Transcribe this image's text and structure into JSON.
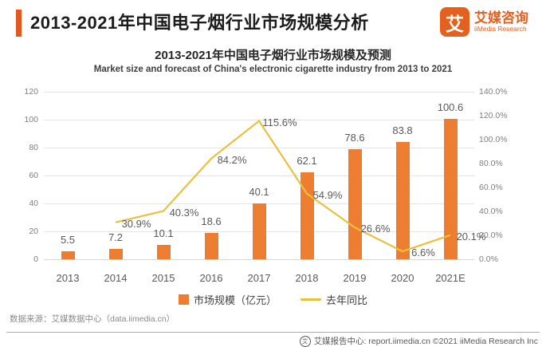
{
  "header": {
    "title": "2013-2021年中国电子烟行业市场规模分析",
    "logo": {
      "icon_char": "艾",
      "brand": "艾媒咨询",
      "brand_sub": "iiMedia Research"
    }
  },
  "chart": {
    "title": "2013-2021年中国电子烟行业市场规模及预测",
    "subtitle": "Market size and forecast of China's electronic cigarette industry from 2013 to 2021"
  },
  "chart_data": {
    "type": "bar+line combo",
    "categories": [
      "2013",
      "2014",
      "2015",
      "2016",
      "2017",
      "2018",
      "2019",
      "2020",
      "2021E"
    ],
    "series": [
      {
        "name": "市场规模（亿元）",
        "type": "bar",
        "axis": "left",
        "color": "#ED7D31",
        "values": [
          5.5,
          7.2,
          10.1,
          18.6,
          40.1,
          62.1,
          78.6,
          83.8,
          100.6
        ]
      },
      {
        "name": "去年同比",
        "type": "line",
        "axis": "right",
        "color": "#E9C13E",
        "unit": "%",
        "values": [
          null,
          30.9,
          40.3,
          84.2,
          115.6,
          54.9,
          26.6,
          6.6,
          20.1
        ]
      }
    ],
    "left_axis": {
      "min": 0,
      "max": 120,
      "step": 20,
      "ticks": [
        "0",
        "20",
        "40",
        "60",
        "80",
        "100",
        "120"
      ]
    },
    "right_axis": {
      "min": 0,
      "max": 140,
      "step": 20,
      "ticks": [
        "0.0%",
        "20.0%",
        "40.0%",
        "60.0%",
        "80.0%",
        "100.0%",
        "120.0%",
        "140.0%"
      ]
    },
    "grid": true,
    "legend_position": "bottom"
  },
  "legend": {
    "items": [
      {
        "label": "市场规模（亿元）",
        "color": "#ED7D31",
        "shape": "square"
      },
      {
        "label": "去年同比",
        "color": "#E9C13E",
        "shape": "line"
      }
    ]
  },
  "footer": {
    "source": "数据来源：艾媒数据中心（data.iimedia.cn）",
    "report_center": "艾媒报告中心: report.iimedia.cn  ©2021  iiMedia Research Inc"
  },
  "colors": {
    "accent": "#E4581F",
    "bar": "#ED7D31",
    "line": "#E9C13E",
    "grid": "#E4E4E4"
  }
}
